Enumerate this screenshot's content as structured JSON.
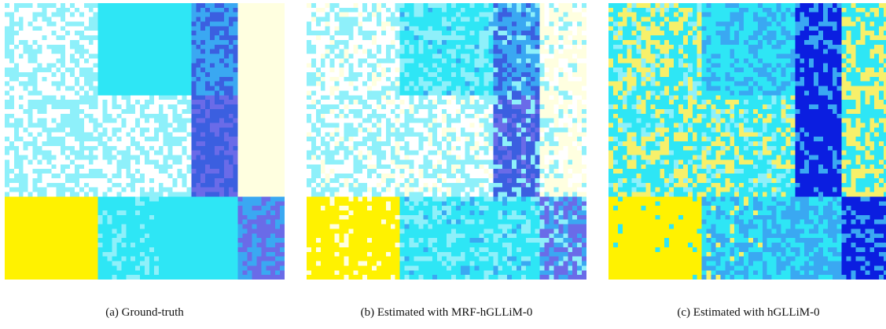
{
  "figure": {
    "panels": [
      {
        "id": "a",
        "caption": "(a) Ground-truth"
      },
      {
        "id": "b",
        "caption": "(b) Estimated with MRF-hGLLiM-0"
      },
      {
        "id": "c",
        "caption": "(c) Estimated with hGLLiM-0"
      }
    ]
  },
  "colors": {
    "white": "#ffffff",
    "cream": "#ffffe0",
    "cyan": "#2ee6f5",
    "light_cyan": "#8ef0fa",
    "blue": "#3aa8f2",
    "dark_blue": "#3b5fe0",
    "navy": "#0b1ee0",
    "violet": "#6a6be8",
    "yellow": "#fff200",
    "pale_yellow": "#f7f06a"
  }
}
